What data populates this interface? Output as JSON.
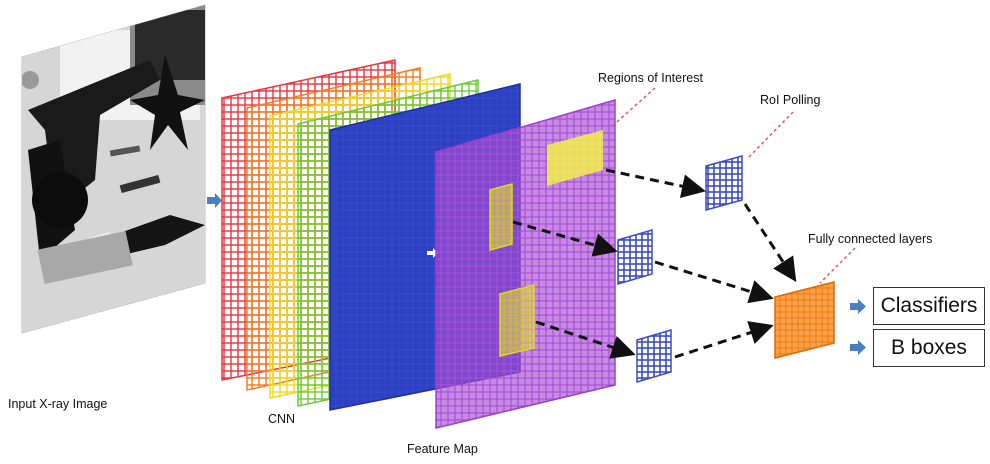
{
  "diagram": {
    "labels": {
      "input": "Input X-ray Image",
      "cnn": "CNN",
      "feature_map": "Feature Map",
      "regions": "Regions of Interest",
      "roi_pooling": "RoI Polling",
      "fc_layers": "Fully connected layers"
    },
    "outputs": {
      "classifiers": "Classifiers",
      "bboxes": "B boxes"
    },
    "colors": {
      "layer_red": "#e8333a",
      "layer_orange": "#f47b20",
      "layer_yellow": "#f5e62a",
      "layer_green": "#6cc93a",
      "layer_blue": "#2d3fc2",
      "feature_map": "#a84fd6",
      "roi": "#f2f04a",
      "pooled": "#3a4cc8",
      "fc": "#f58a1e",
      "arrow_blue": "#4a7fc1",
      "dash_red": "#e8555a"
    }
  }
}
